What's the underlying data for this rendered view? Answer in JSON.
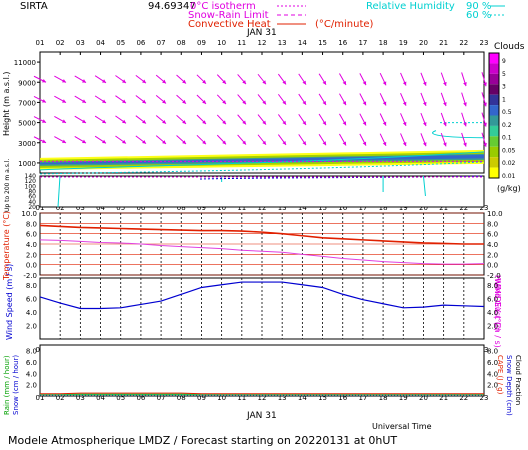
{
  "header": {
    "station": "SIRTA",
    "coords": "94.69347",
    "legend_isotherm_label": "0°C isotherm",
    "legend_snowrain_label": "Snow-Rain Limit",
    "legend_convective_label": "Convective Heat",
    "legend_convective_unit": "(°C/minute)",
    "rh_label": "Relative Humidity",
    "rh_90": "90 %",
    "rh_60": "60 %"
  },
  "hours": [
    "01",
    "02",
    "03",
    "04",
    "05",
    "06",
    "07",
    "08",
    "09",
    "10",
    "11",
    "12",
    "13",
    "14",
    "15",
    "16",
    "17",
    "18",
    "19",
    "20",
    "21",
    "22",
    "23"
  ],
  "date_label": "JAN 31",
  "footer": {
    "title": "Modele Atmospherique LMDZ / Forecast starting on 20220131 at 0hUT",
    "time_axis_label": "Universal Time"
  },
  "colorbar": {
    "title": "Clouds",
    "unit": "(g/kg)",
    "ticks": [
      "9",
      "5",
      "3",
      "1",
      "0.5",
      "0.2",
      "0.1",
      "0.05",
      "0.02",
      "0.01"
    ],
    "colors": [
      "#f0f",
      "#c0c",
      "#909",
      "#606",
      "#339",
      "#36c",
      "#399",
      "#3c9",
      "#6c3",
      "#9c0",
      "#cc0",
      "#ff0"
    ]
  },
  "panels": {
    "height_ylabel": "Height (m a.s.l.)",
    "lower_ylabel": "Up to 200 m a.s.l.",
    "temp_ylabel": "Temperature (°C)",
    "humidex_ylabel": "HUMIDEX (°C)",
    "wind_ylabel": "Wind Speed (m / s)",
    "gust_ylabel": "Wind Gust (m / s)",
    "rain_ylabel": "Rain (mm / hour)",
    "snow_ylabel": "Snow (cm / hour)",
    "cape_ylabel": "CAPE (J / g)",
    "snowdepth_ylabel": "Snow Depth (cm)",
    "cloudfrac_ylabel": "Cloud Fraction"
  },
  "chart_data": [
    {
      "type": "area",
      "name": "height-profile",
      "ylabel": "Height (m a.s.l.)",
      "y_ticks": [
        1000,
        3000,
        5000,
        7000,
        9000,
        11000
      ],
      "lower_ticks": [
        140,
        120,
        100,
        80,
        60,
        40,
        20
      ],
      "ylim": [
        0,
        12000
      ],
      "x": [
        "01",
        "02",
        "03",
        "04",
        "05",
        "06",
        "07",
        "08",
        "09",
        "10",
        "11",
        "12",
        "13",
        "14",
        "15",
        "16",
        "17",
        "18",
        "19",
        "20",
        "21",
        "22",
        "23"
      ],
      "wind_arrows_m": [
        9000,
        7000,
        5000,
        3000
      ]
    },
    {
      "type": "line",
      "name": "temperature",
      "ylabel": "Temperature (°C)",
      "y_ticks": [
        10.0,
        8.0,
        6.0,
        4.0,
        2.0,
        0.0,
        -2.0
      ],
      "ylim": [
        -2.0,
        10.0
      ],
      "x": [
        "01",
        "02",
        "03",
        "04",
        "05",
        "06",
        "07",
        "08",
        "09",
        "10",
        "11",
        "12",
        "13",
        "14",
        "15",
        "16",
        "17",
        "18",
        "19",
        "20",
        "21",
        "22",
        "23"
      ],
      "series": [
        {
          "name": "Temperature",
          "color": "#e02000",
          "values": [
            7.6,
            7.4,
            7.2,
            7.1,
            7.0,
            6.9,
            6.8,
            6.7,
            6.6,
            6.6,
            6.5,
            6.3,
            6.0,
            5.6,
            5.2,
            5.0,
            4.8,
            4.6,
            4.4,
            4.2,
            4.1,
            4.0,
            4.0
          ]
        },
        {
          "name": "HUMIDEX",
          "color": "#e040e0",
          "values": [
            4.8,
            4.7,
            4.5,
            4.3,
            4.2,
            4.0,
            3.7,
            3.5,
            3.3,
            3.1,
            2.8,
            2.6,
            2.4,
            2.0,
            1.6,
            1.2,
            0.9,
            0.6,
            0.4,
            0.2,
            0.1,
            0.1,
            0.2
          ]
        }
      ]
    },
    {
      "type": "line",
      "name": "wind",
      "ylabel": "Wind Speed (m / s)",
      "y_ticks": [
        8.0,
        6.0,
        4.0,
        2.0
      ],
      "ylim": [
        0,
        9.0
      ],
      "x": [
        "01",
        "02",
        "03",
        "04",
        "05",
        "06",
        "07",
        "08",
        "09",
        "10",
        "11",
        "12",
        "13",
        "14",
        "15",
        "16",
        "17",
        "18",
        "19",
        "20",
        "21",
        "22",
        "23"
      ],
      "series": [
        {
          "name": "Wind Speed",
          "color": "#0000d0",
          "values": [
            6.2,
            5.3,
            4.5,
            4.5,
            4.6,
            5.1,
            5.6,
            6.6,
            7.6,
            8.0,
            8.4,
            8.4,
            8.4,
            8.0,
            7.6,
            6.6,
            5.8,
            5.2,
            4.6,
            4.7,
            5.0,
            4.9,
            4.8
          ]
        }
      ]
    },
    {
      "type": "line",
      "name": "precipitation",
      "y_ticks": [
        8.0,
        6.0,
        4.0,
        2.0
      ],
      "ylim": [
        0,
        9.0
      ],
      "x": [
        "01",
        "02",
        "03",
        "04",
        "05",
        "06",
        "07",
        "08",
        "09",
        "10",
        "11",
        "12",
        "13",
        "14",
        "15",
        "16",
        "17",
        "18",
        "19",
        "20",
        "21",
        "22",
        "23"
      ],
      "series": [
        {
          "name": "Rain",
          "color": "#00a000",
          "values": [
            0.3,
            0.3,
            0.3,
            0.3,
            0.3,
            0.3,
            0.3,
            0.3,
            0.3,
            0.3,
            0.3,
            0.3,
            0.3,
            0.3,
            0.3,
            0.3,
            0.3,
            0.3,
            0.3,
            0.3,
            0.3,
            0.3,
            0.3
          ]
        },
        {
          "name": "CAPE",
          "color": "#e02000",
          "values": [
            0.4,
            0.4,
            0.5,
            0.5,
            0.5,
            0.5,
            0.5,
            0.5,
            0.4,
            0.4,
            0.4,
            0.4,
            0.4,
            0.4,
            0.4,
            0.4,
            0.4,
            0.4,
            0.4,
            0.4,
            0.4,
            0.4,
            0.4
          ]
        }
      ]
    }
  ]
}
